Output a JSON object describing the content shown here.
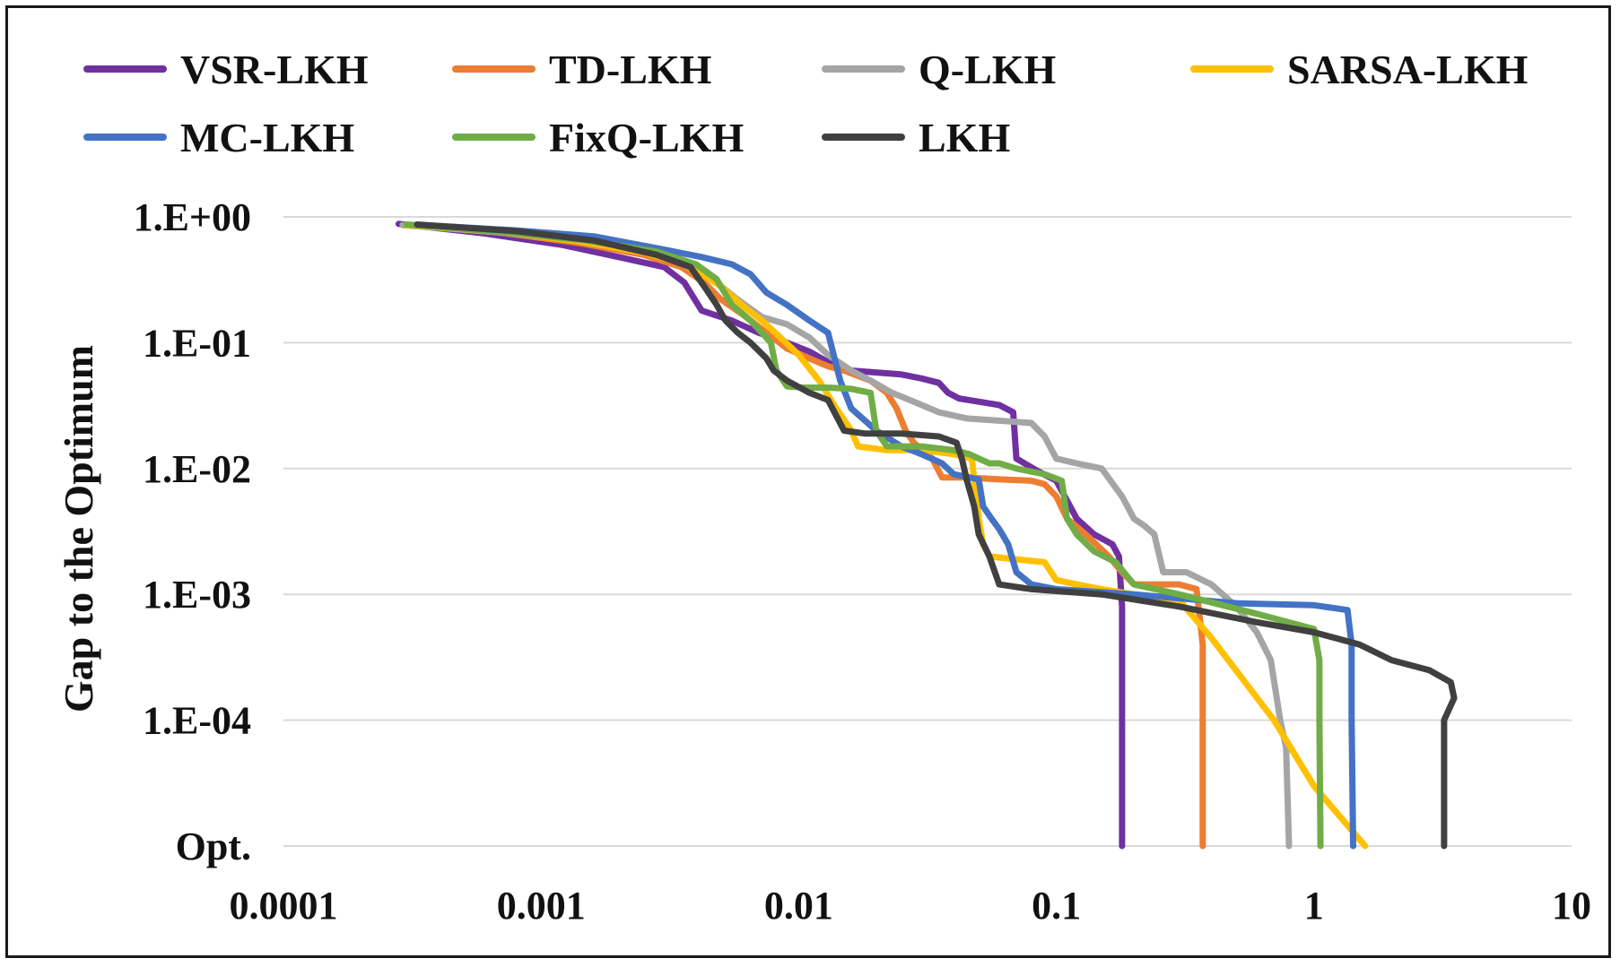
{
  "chart_data": {
    "type": "line",
    "title": "",
    "xlabel": "",
    "ylabel": "Gap to the Optimum",
    "xscale": "log",
    "yscale": "log",
    "xlim": [
      0.0001,
      10
    ],
    "ylim": [
      "Opt.",
      1
    ],
    "x_tick_labels": [
      "0.0001",
      "0.001",
      "0.01",
      "0.1",
      "1",
      "10"
    ],
    "x_ticks": [
      0.0001,
      0.001,
      0.01,
      0.1,
      1,
      10
    ],
    "y_tick_labels": [
      "1.E+00",
      "1.E-01",
      "1.E-02",
      "1.E-03",
      "1.E-04",
      "Opt."
    ],
    "y_ticks": [
      1,
      0.1,
      0.01,
      0.001,
      0.0001,
      0
    ],
    "opt_level_note": "Opt. denotes gap = 0, drawn one decade below 1.E-04",
    "grid": "horizontal",
    "legend_position": "top",
    "series": [
      {
        "name": "VSR-LKH",
        "color": "#7030A0",
        "points": [
          [
            0.00028,
            0.88
          ],
          [
            0.0006,
            0.74
          ],
          [
            0.0012,
            0.6
          ],
          [
            0.002,
            0.48
          ],
          [
            0.003,
            0.4
          ],
          [
            0.0036,
            0.3
          ],
          [
            0.0042,
            0.18
          ],
          [
            0.0055,
            0.15
          ],
          [
            0.007,
            0.12
          ],
          [
            0.009,
            0.1
          ],
          [
            0.011,
            0.085
          ],
          [
            0.013,
            0.07
          ],
          [
            0.016,
            0.06
          ],
          [
            0.02,
            0.058
          ],
          [
            0.025,
            0.056
          ],
          [
            0.03,
            0.052
          ],
          [
            0.035,
            0.048
          ],
          [
            0.038,
            0.04
          ],
          [
            0.042,
            0.036
          ],
          [
            0.05,
            0.034
          ],
          [
            0.06,
            0.032
          ],
          [
            0.068,
            0.028
          ],
          [
            0.07,
            0.012
          ],
          [
            0.085,
            0.0095
          ],
          [
            0.1,
            0.008
          ],
          [
            0.12,
            0.004
          ],
          [
            0.14,
            0.003
          ],
          [
            0.165,
            0.0025
          ],
          [
            0.175,
            0.002
          ],
          [
            0.18,
            0.0008
          ],
          [
            0.18,
            0.0001
          ],
          [
            0.18,
            0
          ]
        ]
      },
      {
        "name": "TD-LKH",
        "color": "#ED7D31",
        "points": [
          [
            0.0003,
            0.87
          ],
          [
            0.0007,
            0.75
          ],
          [
            0.0014,
            0.62
          ],
          [
            0.0025,
            0.5
          ],
          [
            0.0035,
            0.4
          ],
          [
            0.0043,
            0.3
          ],
          [
            0.005,
            0.22
          ],
          [
            0.006,
            0.17
          ],
          [
            0.0075,
            0.12
          ],
          [
            0.009,
            0.09
          ],
          [
            0.011,
            0.075
          ],
          [
            0.013,
            0.065
          ],
          [
            0.015,
            0.06
          ],
          [
            0.019,
            0.05
          ],
          [
            0.022,
            0.04
          ],
          [
            0.024,
            0.03
          ],
          [
            0.026,
            0.02
          ],
          [
            0.028,
            0.016
          ],
          [
            0.033,
            0.012
          ],
          [
            0.036,
            0.0085
          ],
          [
            0.045,
            0.0085
          ],
          [
            0.06,
            0.0082
          ],
          [
            0.08,
            0.008
          ],
          [
            0.09,
            0.0075
          ],
          [
            0.1,
            0.006
          ],
          [
            0.11,
            0.004
          ],
          [
            0.13,
            0.003
          ],
          [
            0.16,
            0.002
          ],
          [
            0.18,
            0.0015
          ],
          [
            0.2,
            0.0012
          ],
          [
            0.3,
            0.0012
          ],
          [
            0.35,
            0.0011
          ],
          [
            0.37,
            0.0004
          ],
          [
            0.37,
            0.0001
          ],
          [
            0.37,
            0
          ]
        ]
      },
      {
        "name": "Q-LKH",
        "color": "#A5A5A5",
        "points": [
          [
            0.00029,
            0.86
          ],
          [
            0.0007,
            0.75
          ],
          [
            0.0015,
            0.64
          ],
          [
            0.0026,
            0.55
          ],
          [
            0.0038,
            0.42
          ],
          [
            0.0048,
            0.3
          ],
          [
            0.0058,
            0.22
          ],
          [
            0.0072,
            0.16
          ],
          [
            0.009,
            0.14
          ],
          [
            0.011,
            0.11
          ],
          [
            0.013,
            0.08
          ],
          [
            0.016,
            0.06
          ],
          [
            0.019,
            0.05
          ],
          [
            0.023,
            0.04
          ],
          [
            0.028,
            0.034
          ],
          [
            0.035,
            0.028
          ],
          [
            0.045,
            0.025
          ],
          [
            0.06,
            0.024
          ],
          [
            0.08,
            0.023
          ],
          [
            0.09,
            0.018
          ],
          [
            0.1,
            0.012
          ],
          [
            0.12,
            0.011
          ],
          [
            0.15,
            0.01
          ],
          [
            0.18,
            0.006
          ],
          [
            0.2,
            0.004
          ],
          [
            0.22,
            0.0035
          ],
          [
            0.24,
            0.003
          ],
          [
            0.26,
            0.0015
          ],
          [
            0.32,
            0.0015
          ],
          [
            0.4,
            0.0012
          ],
          [
            0.5,
            0.0008
          ],
          [
            0.6,
            0.0005
          ],
          [
            0.68,
            0.0003
          ],
          [
            0.74,
            0.0001
          ],
          [
            0.78,
            6e-05
          ],
          [
            0.8,
            0
          ]
        ]
      },
      {
        "name": "SARSA-LKH",
        "color": "#FFC000",
        "points": [
          [
            0.0003,
            0.86
          ],
          [
            0.0007,
            0.76
          ],
          [
            0.0014,
            0.64
          ],
          [
            0.0025,
            0.52
          ],
          [
            0.0035,
            0.43
          ],
          [
            0.0042,
            0.35
          ],
          [
            0.005,
            0.28
          ],
          [
            0.006,
            0.2
          ],
          [
            0.0072,
            0.15
          ],
          [
            0.0085,
            0.11
          ],
          [
            0.01,
            0.08
          ],
          [
            0.012,
            0.05
          ],
          [
            0.014,
            0.03
          ],
          [
            0.016,
            0.02
          ],
          [
            0.017,
            0.015
          ],
          [
            0.022,
            0.014
          ],
          [
            0.03,
            0.014
          ],
          [
            0.04,
            0.013
          ],
          [
            0.047,
            0.012
          ],
          [
            0.05,
            0.004
          ],
          [
            0.052,
            0.0025
          ],
          [
            0.055,
            0.002
          ],
          [
            0.07,
            0.0019
          ],
          [
            0.09,
            0.0018
          ],
          [
            0.1,
            0.0013
          ],
          [
            0.12,
            0.0012
          ],
          [
            0.15,
            0.0011
          ],
          [
            0.2,
            0.001
          ],
          [
            0.3,
            0.0009
          ],
          [
            0.4,
            0.00045
          ],
          [
            0.7,
            0.0001
          ],
          [
            1.0,
            3e-05
          ],
          [
            1.58,
            0
          ]
        ]
      },
      {
        "name": "MC-LKH",
        "color": "#4472C4",
        "points": [
          [
            0.00035,
            0.86
          ],
          [
            0.0008,
            0.78
          ],
          [
            0.0016,
            0.7
          ],
          [
            0.003,
            0.55
          ],
          [
            0.0042,
            0.48
          ],
          [
            0.0055,
            0.42
          ],
          [
            0.0065,
            0.35
          ],
          [
            0.0075,
            0.25
          ],
          [
            0.009,
            0.2
          ],
          [
            0.011,
            0.15
          ],
          [
            0.013,
            0.12
          ],
          [
            0.0145,
            0.05
          ],
          [
            0.016,
            0.03
          ],
          [
            0.02,
            0.02
          ],
          [
            0.025,
            0.015
          ],
          [
            0.03,
            0.013
          ],
          [
            0.036,
            0.011
          ],
          [
            0.04,
            0.009
          ],
          [
            0.046,
            0.0085
          ],
          [
            0.05,
            0.0082
          ],
          [
            0.052,
            0.005
          ],
          [
            0.056,
            0.004
          ],
          [
            0.06,
            0.0033
          ],
          [
            0.065,
            0.0025
          ],
          [
            0.07,
            0.0015
          ],
          [
            0.08,
            0.0012
          ],
          [
            0.1,
            0.0011
          ],
          [
            0.2,
            0.001
          ],
          [
            0.5,
            0.00085
          ],
          [
            1.0,
            0.00082
          ],
          [
            1.35,
            0.00075
          ],
          [
            1.4,
            0.0004
          ],
          [
            1.4,
            0.0001
          ],
          [
            1.42,
            0
          ]
        ]
      },
      {
        "name": "FixQ-LKH",
        "color": "#70AD47",
        "points": [
          [
            0.0003,
            0.87
          ],
          [
            0.0007,
            0.76
          ],
          [
            0.0015,
            0.65
          ],
          [
            0.0028,
            0.53
          ],
          [
            0.004,
            0.42
          ],
          [
            0.0048,
            0.32
          ],
          [
            0.0055,
            0.2
          ],
          [
            0.0065,
            0.15
          ],
          [
            0.0072,
            0.12
          ],
          [
            0.0078,
            0.1
          ],
          [
            0.0082,
            0.06
          ],
          [
            0.009,
            0.045
          ],
          [
            0.0105,
            0.044
          ],
          [
            0.013,
            0.044
          ],
          [
            0.016,
            0.043
          ],
          [
            0.019,
            0.04
          ],
          [
            0.02,
            0.02
          ],
          [
            0.022,
            0.015
          ],
          [
            0.03,
            0.015
          ],
          [
            0.04,
            0.014
          ],
          [
            0.046,
            0.013
          ],
          [
            0.05,
            0.012
          ],
          [
            0.055,
            0.011
          ],
          [
            0.06,
            0.011
          ],
          [
            0.07,
            0.01
          ],
          [
            0.09,
            0.009
          ],
          [
            0.105,
            0.008
          ],
          [
            0.11,
            0.004
          ],
          [
            0.12,
            0.003
          ],
          [
            0.14,
            0.0022
          ],
          [
            0.17,
            0.0018
          ],
          [
            0.2,
            0.0012
          ],
          [
            0.3,
            0.001
          ],
          [
            0.6,
            0.0007
          ],
          [
            1.0,
            0.00053
          ],
          [
            1.05,
            0.0003
          ],
          [
            1.05,
            0.0001
          ],
          [
            1.06,
            0
          ]
        ]
      },
      {
        "name": "LKH",
        "color": "#404040",
        "points": [
          [
            0.00033,
            0.87
          ],
          [
            0.0008,
            0.77
          ],
          [
            0.0016,
            0.65
          ],
          [
            0.0028,
            0.5
          ],
          [
            0.0038,
            0.4
          ],
          [
            0.0043,
            0.28
          ],
          [
            0.0048,
            0.2
          ],
          [
            0.0052,
            0.15
          ],
          [
            0.0058,
            0.12
          ],
          [
            0.0065,
            0.1
          ],
          [
            0.0075,
            0.075
          ],
          [
            0.008,
            0.06
          ],
          [
            0.009,
            0.05
          ],
          [
            0.011,
            0.04
          ],
          [
            0.013,
            0.035
          ],
          [
            0.015,
            0.02
          ],
          [
            0.018,
            0.019
          ],
          [
            0.025,
            0.019
          ],
          [
            0.035,
            0.018
          ],
          [
            0.041,
            0.016
          ],
          [
            0.043,
            0.012
          ],
          [
            0.045,
            0.008
          ],
          [
            0.048,
            0.005
          ],
          [
            0.05,
            0.003
          ],
          [
            0.055,
            0.002
          ],
          [
            0.06,
            0.0012
          ],
          [
            0.08,
            0.0011
          ],
          [
            0.15,
            0.001
          ],
          [
            0.3,
            0.0008
          ],
          [
            0.6,
            0.0006
          ],
          [
            1.0,
            0.0005
          ],
          [
            1.5,
            0.0004
          ],
          [
            2.0,
            0.0003
          ],
          [
            2.8,
            0.00025
          ],
          [
            3.4,
            0.0002
          ],
          [
            3.5,
            0.00015
          ],
          [
            3.2,
            0.0001
          ],
          [
            3.2,
            0
          ]
        ]
      }
    ]
  }
}
